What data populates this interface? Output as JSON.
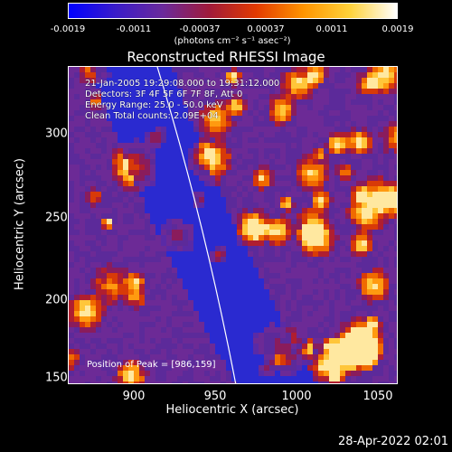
{
  "colorbar": {
    "ticks": [
      "-0.0019",
      "-0.0011",
      "-0.00037",
      "0.00037",
      "0.0011",
      "0.0019"
    ],
    "units": "(photons cm⁻² s⁻¹ asec⁻²)",
    "colors": [
      "#0000ff",
      "#3a1cc9",
      "#6a2a9c",
      "#a01a3a",
      "#e23a00",
      "#ff9400",
      "#ffd23a",
      "#ffffff"
    ]
  },
  "plot": {
    "title": "Reconstructed RHESSI Image",
    "xlabel": "Heliocentric X (arcsec)",
    "ylabel": "Heliocentric Y (arcsec)",
    "x_ticks": [
      "900",
      "950",
      "1000",
      "1050"
    ],
    "y_ticks": [
      "300",
      "250",
      "200",
      "150"
    ],
    "info_lines": [
      "21-Jan-2005 19:29:08.000 to 19:31:12.000",
      "Detectors: 3F 4F 5F 6F 7F 8F, Att 0",
      "Energy Range: 25.0 - 50.0 keV",
      "Clean     Total counts: 2.09E+04"
    ],
    "peak_text": "Position of Peak = [986,159]"
  },
  "chart_data": {
    "type": "heatmap",
    "title": "Reconstructed RHESSI Image",
    "xlabel": "Heliocentric X (arcsec)",
    "ylabel": "Heliocentric Y (arcsec)",
    "xlim": [
      862,
      1052
    ],
    "ylim": [
      150,
      322
    ],
    "colorbar_range": [
      -0.0019,
      0.0019
    ],
    "colorbar_ticks": [
      -0.0019,
      -0.0011,
      -0.00037,
      0.00037,
      0.0011,
      0.0019
    ],
    "peak_position": [
      986,
      159
    ]
  },
  "footer": {
    "date": "28-Apr-2022 02:01"
  }
}
